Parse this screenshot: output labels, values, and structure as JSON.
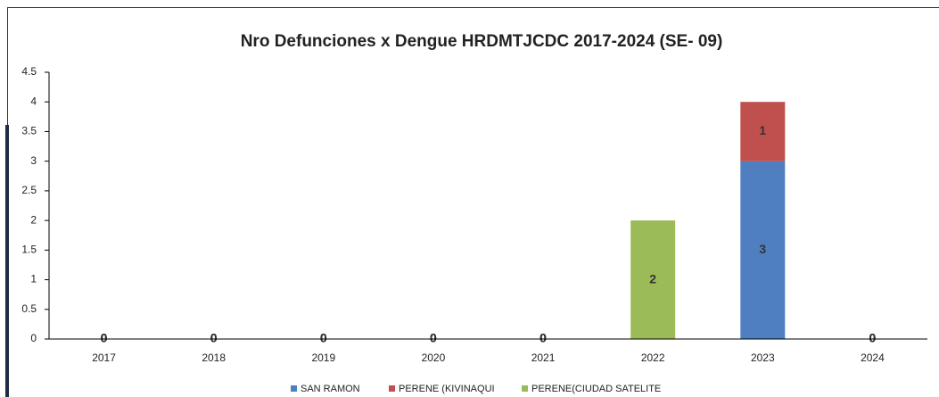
{
  "chart_data": {
    "type": "bar",
    "stacked": true,
    "title": "Nro Defunciones x  Dengue HRDMTJCDC 2017-2024 (SE- 09)",
    "categories": [
      "2017",
      "2018",
      "2019",
      "2020",
      "2021",
      "2022",
      "2023",
      "2024"
    ],
    "series": [
      {
        "name": "SAN RAMON",
        "color": "#4f7fc0",
        "values": [
          0,
          0,
          0,
          0,
          0,
          0,
          3,
          0
        ]
      },
      {
        "name": "PERENE (KIVINAQUI",
        "color": "#c0504d",
        "values": [
          0,
          0,
          0,
          0,
          0,
          0,
          1,
          0
        ]
      },
      {
        "name": "PERENE(CIUDAD SATELITE",
        "color": "#9bbb59",
        "values": [
          0,
          0,
          0,
          0,
          0,
          2,
          0,
          0
        ]
      }
    ],
    "ylim": [
      0,
      4.5
    ],
    "yticks": [
      0,
      0.5,
      1,
      1.5,
      2,
      2.5,
      3,
      3.5,
      4,
      4.5
    ],
    "grid": false,
    "legend": "bottom"
  }
}
